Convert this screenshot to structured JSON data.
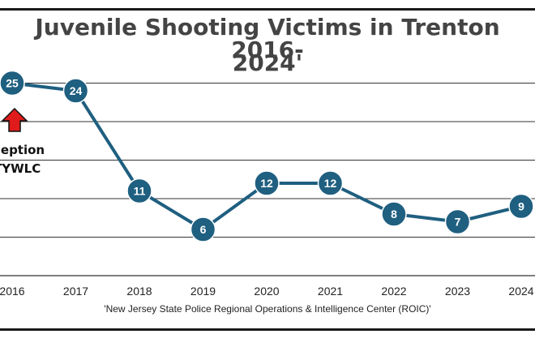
{
  "chart_data": {
    "type": "line",
    "title_line1": "Juvenile Shooting Victims in Trenton 2016-",
    "title_line2": "2024'",
    "categories": [
      "2016",
      "2017",
      "2018",
      "2019",
      "2020",
      "2021",
      "2022",
      "2023",
      "2024"
    ],
    "series": [
      {
        "values": [
          25,
          24,
          11,
          6,
          12,
          12,
          8,
          7,
          9
        ]
      }
    ],
    "data_labels": [
      "25",
      "24",
      "11",
      "6",
      "12",
      "12",
      "8",
      "7",
      "9"
    ],
    "ylim": [
      0,
      25
    ],
    "grid": true,
    "source": "'New Jersey State Police Regional Operations & Intelligence Center (ROIC)'",
    "annotation": {
      "line1": "ception",
      "line2": "TYWLC",
      "arrow_color": "#e01b1b"
    },
    "colors": {
      "line": "#1f5f80",
      "marker": "#1f5f80",
      "label": "#ffffff",
      "grid": "#333333"
    }
  }
}
